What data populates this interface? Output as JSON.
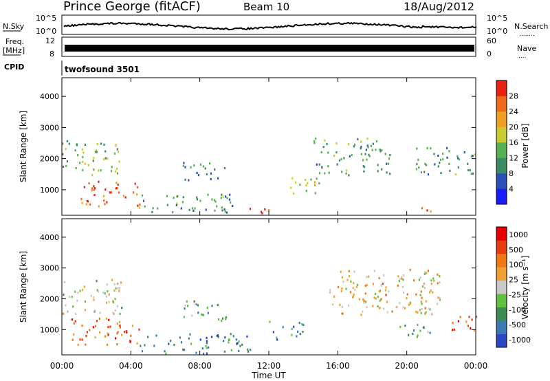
{
  "header": {
    "station": "Prince George (fitACF)",
    "beam": "Beam 10",
    "date": "18/Aug/2012"
  },
  "noise_panel": {
    "left_label": "N.Sky",
    "left_ticks": [
      "10^5",
      "10^0"
    ],
    "right_ticks": [
      "10^5",
      "10^0"
    ],
    "right_label": "N.Search",
    "right_label_dots": "........"
  },
  "freq_panel": {
    "left_label_line1": "Freq.",
    "left_label_line2": "[MHz]",
    "left_ticks": [
      "12",
      "8"
    ],
    "right_ticks": [
      "60",
      "0"
    ],
    "right_label": "Nave",
    "right_label_dots": "...."
  },
  "cpid": {
    "label": "CPID",
    "value": "twofsound 3501"
  },
  "chart_data": [
    {
      "type": "heatmap",
      "title": "",
      "xlabel": "",
      "ylabel": "Slant Range [km]",
      "yticks": [
        "1000",
        "2000",
        "3000",
        "4000"
      ],
      "ylim": [
        180,
        4600
      ],
      "colorbar": {
        "label": "Power [dB]",
        "ticks": [
          "4",
          "8",
          "12",
          "16",
          "20",
          "24",
          "28"
        ],
        "colors": [
          "#1a1aff",
          "#2850b8",
          "#3c8a64",
          "#58b050",
          "#c8cc30",
          "#f0a020",
          "#f06818",
          "#e82010"
        ]
      },
      "regions": [
        {
          "t0": 0.0,
          "t1": 3.5,
          "r0": 1500,
          "r1": 2600,
          "level": 0.45
        },
        {
          "t0": 1.0,
          "t1": 4.5,
          "r0": 500,
          "r1": 1300,
          "level": 0.85
        },
        {
          "t0": 4.0,
          "t1": 10.0,
          "r0": 300,
          "r1": 900,
          "level": 0.35
        },
        {
          "t0": 7.0,
          "t1": 9.5,
          "r0": 1300,
          "r1": 1900,
          "level": 0.3
        },
        {
          "t0": 10.5,
          "t1": 12.0,
          "r0": 200,
          "r1": 450,
          "level": 0.9
        },
        {
          "t0": 13.0,
          "t1": 15.0,
          "r0": 900,
          "r1": 1500,
          "level": 0.55
        },
        {
          "t0": 14.5,
          "t1": 19.0,
          "r0": 1500,
          "r1": 2700,
          "level": 0.4
        },
        {
          "t0": 20.5,
          "t1": 24.0,
          "r0": 1500,
          "r1": 2400,
          "level": 0.35
        },
        {
          "t0": 20.5,
          "t1": 21.5,
          "r0": 200,
          "r1": 450,
          "level": 0.8
        }
      ]
    },
    {
      "type": "heatmap",
      "title": "",
      "xlabel": "Time UT",
      "ylabel": "Slant Range [km]",
      "xticks": [
        "00:00",
        "04:00",
        "08:00",
        "12:00",
        "16:00",
        "20:00",
        "00:00"
      ],
      "yticks": [
        "1000",
        "2000",
        "3000",
        "4000"
      ],
      "xlim": [
        0,
        24
      ],
      "ylim": [
        180,
        4600
      ],
      "colorbar": {
        "label": "Velocity [m s⁻¹]",
        "ticks": [
          "1000",
          "500",
          "100",
          "25",
          "-25",
          "-100",
          "-500",
          "-1000"
        ],
        "colors": [
          "#2848c8",
          "#3c7ab4",
          "#3c8c50",
          "#60c040",
          "#c8c8c8",
          "#f0a030",
          "#f07810",
          "#e83c10",
          "#e80000"
        ]
      },
      "regions": [
        {
          "t0": 0.0,
          "t1": 3.5,
          "r0": 1500,
          "r1": 2700,
          "level": 0.5
        },
        {
          "t0": 0.5,
          "t1": 4.5,
          "r0": 500,
          "r1": 1400,
          "level": 0.75
        },
        {
          "t0": 4.5,
          "t1": 11.0,
          "r0": 250,
          "r1": 900,
          "level": 0.2
        },
        {
          "t0": 7.0,
          "t1": 9.5,
          "r0": 1300,
          "r1": 2000,
          "level": 0.3
        },
        {
          "t0": 12.0,
          "t1": 14.0,
          "r0": 700,
          "r1": 1300,
          "level": 0.25
        },
        {
          "t0": 15.5,
          "t1": 22.0,
          "r0": 1500,
          "r1": 3000,
          "level": 0.55
        },
        {
          "t0": 18.0,
          "t1": 19.0,
          "r0": 2000,
          "r1": 2600,
          "level": 0.72
        },
        {
          "t0": 19.5,
          "t1": 21.5,
          "r0": 700,
          "r1": 1200,
          "level": 0.3
        },
        {
          "t0": 22.5,
          "t1": 24.0,
          "r0": 900,
          "r1": 1500,
          "level": 0.8
        }
      ]
    }
  ]
}
